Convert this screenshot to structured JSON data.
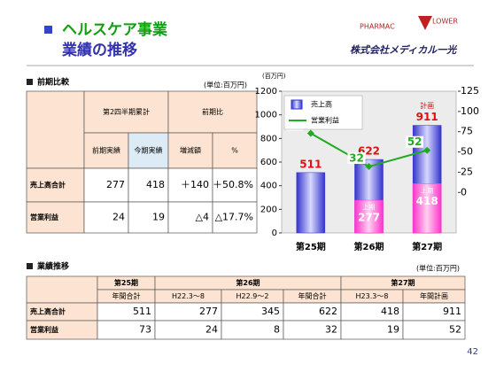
{
  "header": {
    "title": "ヘルスケア事業",
    "subtitle": "業績の推移",
    "logo_left": "PHARMAC",
    "logo_right": "LOWER",
    "company": "株式会社メディカル一光"
  },
  "comparison": {
    "title": "前期比較",
    "unit": "(単位:百万円)",
    "groups": [
      "第2四半期累計",
      "前期比"
    ],
    "columns": [
      "前期実績",
      "今期実績",
      "増減額",
      "%"
    ],
    "rows": [
      [
        "売上高合計",
        "277",
        "418",
        "＋140",
        "＋50.8%"
      ],
      [
        "営業利益",
        "24",
        "19",
        "△4",
        "△17.7%"
      ]
    ]
  },
  "chart_data": {
    "type": "bar",
    "y_label": "(百万円)",
    "categories": [
      "第25期",
      "第26期",
      "第27期"
    ],
    "series": [
      {
        "name": "売上高",
        "color": "#3333cc",
        "values": [
          511,
          622,
          911
        ]
      },
      {
        "name": "上期",
        "color": "#ff33cc",
        "values": [
          null,
          277,
          418
        ]
      },
      {
        "name": "営業利益",
        "color": "#22aa22",
        "type": "line",
        "axis": "y2",
        "values": [
          73,
          32,
          52
        ]
      }
    ],
    "annotation": "計画",
    "ylim": [
      0,
      1200
    ],
    "yticks": [
      0,
      200,
      400,
      600,
      800,
      1000,
      1200
    ],
    "y2lim": [
      -50,
      125
    ],
    "y2ticks": [
      0,
      25,
      50,
      75,
      100,
      125
    ],
    "legend": "upper left"
  },
  "trend": {
    "title": "業績推移",
    "unit": "(単位:百万円)",
    "periods": [
      "第25期",
      "第26期",
      "第27期"
    ],
    "columns": [
      "年間合計",
      "H22.3～8",
      "H22.9～2",
      "年間合計",
      "H23.3～8",
      "年間計画"
    ],
    "rows": [
      [
        "売上高合計",
        "511",
        "277",
        "345",
        "622",
        "418",
        "911"
      ],
      [
        "営業利益",
        "73",
        "24",
        "8",
        "32",
        "19",
        "52"
      ]
    ]
  },
  "page": "42"
}
